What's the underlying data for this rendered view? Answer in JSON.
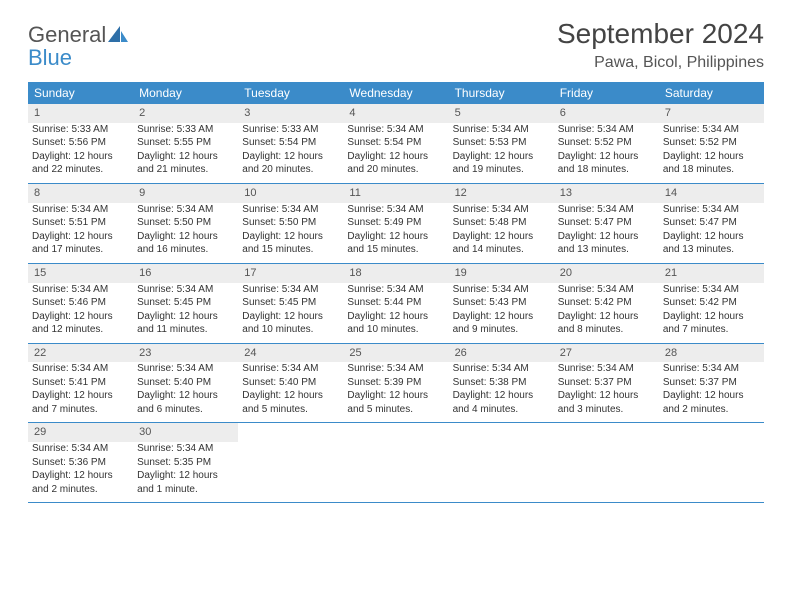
{
  "logo": {
    "text_gray": "General",
    "text_blue": "Blue"
  },
  "title": "September 2024",
  "location": "Pawa, Bicol, Philippines",
  "colors": {
    "header_bg": "#3b8bc9",
    "header_text": "#ffffff",
    "daynum_bg": "#ededed",
    "row_border": "#3b8bc9",
    "body_text": "#333333",
    "logo_gray": "#555555",
    "logo_blue": "#3b8bc9"
  },
  "weekdays": [
    "Sunday",
    "Monday",
    "Tuesday",
    "Wednesday",
    "Thursday",
    "Friday",
    "Saturday"
  ],
  "weeks": [
    [
      {
        "n": "1",
        "sr": "Sunrise: 5:33 AM",
        "ss": "Sunset: 5:56 PM",
        "d1": "Daylight: 12 hours",
        "d2": "and 22 minutes."
      },
      {
        "n": "2",
        "sr": "Sunrise: 5:33 AM",
        "ss": "Sunset: 5:55 PM",
        "d1": "Daylight: 12 hours",
        "d2": "and 21 minutes."
      },
      {
        "n": "3",
        "sr": "Sunrise: 5:33 AM",
        "ss": "Sunset: 5:54 PM",
        "d1": "Daylight: 12 hours",
        "d2": "and 20 minutes."
      },
      {
        "n": "4",
        "sr": "Sunrise: 5:34 AM",
        "ss": "Sunset: 5:54 PM",
        "d1": "Daylight: 12 hours",
        "d2": "and 20 minutes."
      },
      {
        "n": "5",
        "sr": "Sunrise: 5:34 AM",
        "ss": "Sunset: 5:53 PM",
        "d1": "Daylight: 12 hours",
        "d2": "and 19 minutes."
      },
      {
        "n": "6",
        "sr": "Sunrise: 5:34 AM",
        "ss": "Sunset: 5:52 PM",
        "d1": "Daylight: 12 hours",
        "d2": "and 18 minutes."
      },
      {
        "n": "7",
        "sr": "Sunrise: 5:34 AM",
        "ss": "Sunset: 5:52 PM",
        "d1": "Daylight: 12 hours",
        "d2": "and 18 minutes."
      }
    ],
    [
      {
        "n": "8",
        "sr": "Sunrise: 5:34 AM",
        "ss": "Sunset: 5:51 PM",
        "d1": "Daylight: 12 hours",
        "d2": "and 17 minutes."
      },
      {
        "n": "9",
        "sr": "Sunrise: 5:34 AM",
        "ss": "Sunset: 5:50 PM",
        "d1": "Daylight: 12 hours",
        "d2": "and 16 minutes."
      },
      {
        "n": "10",
        "sr": "Sunrise: 5:34 AM",
        "ss": "Sunset: 5:50 PM",
        "d1": "Daylight: 12 hours",
        "d2": "and 15 minutes."
      },
      {
        "n": "11",
        "sr": "Sunrise: 5:34 AM",
        "ss": "Sunset: 5:49 PM",
        "d1": "Daylight: 12 hours",
        "d2": "and 15 minutes."
      },
      {
        "n": "12",
        "sr": "Sunrise: 5:34 AM",
        "ss": "Sunset: 5:48 PM",
        "d1": "Daylight: 12 hours",
        "d2": "and 14 minutes."
      },
      {
        "n": "13",
        "sr": "Sunrise: 5:34 AM",
        "ss": "Sunset: 5:47 PM",
        "d1": "Daylight: 12 hours",
        "d2": "and 13 minutes."
      },
      {
        "n": "14",
        "sr": "Sunrise: 5:34 AM",
        "ss": "Sunset: 5:47 PM",
        "d1": "Daylight: 12 hours",
        "d2": "and 13 minutes."
      }
    ],
    [
      {
        "n": "15",
        "sr": "Sunrise: 5:34 AM",
        "ss": "Sunset: 5:46 PM",
        "d1": "Daylight: 12 hours",
        "d2": "and 12 minutes."
      },
      {
        "n": "16",
        "sr": "Sunrise: 5:34 AM",
        "ss": "Sunset: 5:45 PM",
        "d1": "Daylight: 12 hours",
        "d2": "and 11 minutes."
      },
      {
        "n": "17",
        "sr": "Sunrise: 5:34 AM",
        "ss": "Sunset: 5:45 PM",
        "d1": "Daylight: 12 hours",
        "d2": "and 10 minutes."
      },
      {
        "n": "18",
        "sr": "Sunrise: 5:34 AM",
        "ss": "Sunset: 5:44 PM",
        "d1": "Daylight: 12 hours",
        "d2": "and 10 minutes."
      },
      {
        "n": "19",
        "sr": "Sunrise: 5:34 AM",
        "ss": "Sunset: 5:43 PM",
        "d1": "Daylight: 12 hours",
        "d2": "and 9 minutes."
      },
      {
        "n": "20",
        "sr": "Sunrise: 5:34 AM",
        "ss": "Sunset: 5:42 PM",
        "d1": "Daylight: 12 hours",
        "d2": "and 8 minutes."
      },
      {
        "n": "21",
        "sr": "Sunrise: 5:34 AM",
        "ss": "Sunset: 5:42 PM",
        "d1": "Daylight: 12 hours",
        "d2": "and 7 minutes."
      }
    ],
    [
      {
        "n": "22",
        "sr": "Sunrise: 5:34 AM",
        "ss": "Sunset: 5:41 PM",
        "d1": "Daylight: 12 hours",
        "d2": "and 7 minutes."
      },
      {
        "n": "23",
        "sr": "Sunrise: 5:34 AM",
        "ss": "Sunset: 5:40 PM",
        "d1": "Daylight: 12 hours",
        "d2": "and 6 minutes."
      },
      {
        "n": "24",
        "sr": "Sunrise: 5:34 AM",
        "ss": "Sunset: 5:40 PM",
        "d1": "Daylight: 12 hours",
        "d2": "and 5 minutes."
      },
      {
        "n": "25",
        "sr": "Sunrise: 5:34 AM",
        "ss": "Sunset: 5:39 PM",
        "d1": "Daylight: 12 hours",
        "d2": "and 5 minutes."
      },
      {
        "n": "26",
        "sr": "Sunrise: 5:34 AM",
        "ss": "Sunset: 5:38 PM",
        "d1": "Daylight: 12 hours",
        "d2": "and 4 minutes."
      },
      {
        "n": "27",
        "sr": "Sunrise: 5:34 AM",
        "ss": "Sunset: 5:37 PM",
        "d1": "Daylight: 12 hours",
        "d2": "and 3 minutes."
      },
      {
        "n": "28",
        "sr": "Sunrise: 5:34 AM",
        "ss": "Sunset: 5:37 PM",
        "d1": "Daylight: 12 hours",
        "d2": "and 2 minutes."
      }
    ],
    [
      {
        "n": "29",
        "sr": "Sunrise: 5:34 AM",
        "ss": "Sunset: 5:36 PM",
        "d1": "Daylight: 12 hours",
        "d2": "and 2 minutes."
      },
      {
        "n": "30",
        "sr": "Sunrise: 5:34 AM",
        "ss": "Sunset: 5:35 PM",
        "d1": "Daylight: 12 hours",
        "d2": "and 1 minute."
      },
      null,
      null,
      null,
      null,
      null
    ]
  ]
}
